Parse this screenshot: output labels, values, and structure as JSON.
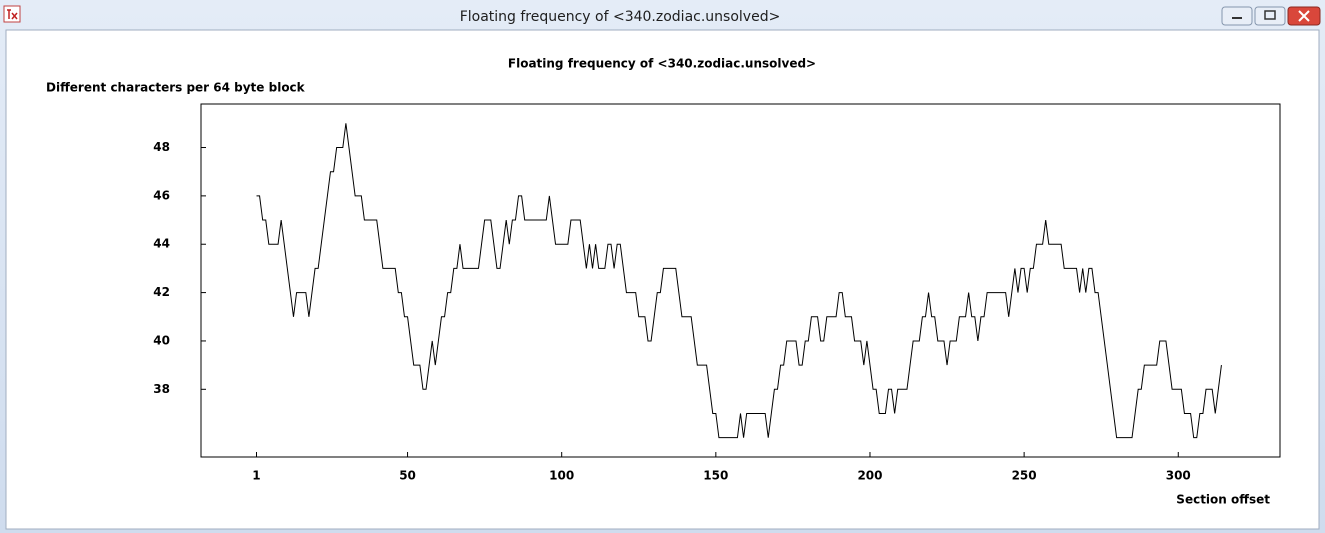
{
  "window": {
    "title": "Floating frequency of <340.zodiac.unsolved>"
  },
  "chart_data": {
    "type": "line",
    "title": "Floating frequency of <340.zodiac.unsolved>",
    "y_label": "Different characters per 64 byte block",
    "x_label": "Section offset",
    "color": "#000000",
    "x": [
      1,
      2,
      3,
      4,
      5,
      6,
      7,
      8,
      9,
      10,
      11,
      12,
      13,
      14,
      15,
      16,
      17,
      18,
      19,
      20,
      21,
      22,
      23,
      24,
      25,
      26,
      27,
      28,
      29,
      30,
      31,
      32,
      33,
      34,
      35,
      36,
      37,
      38,
      39,
      40,
      41,
      42,
      43,
      44,
      45,
      46,
      47,
      48,
      49,
      50,
      51,
      52,
      53,
      54,
      55,
      56,
      57,
      58,
      59,
      60,
      61,
      62,
      63,
      64,
      65,
      66,
      67,
      68,
      69,
      70,
      71,
      72,
      73,
      74,
      75,
      76,
      77,
      78,
      79,
      80,
      81,
      82,
      83,
      84,
      85,
      86,
      87,
      88,
      89,
      90,
      91,
      92,
      93,
      94,
      95,
      96,
      97,
      98,
      99,
      100,
      101,
      102,
      103,
      104,
      105,
      106,
      107,
      108,
      109,
      110,
      111,
      112,
      113,
      114,
      115,
      116,
      117,
      118,
      119,
      120,
      121,
      122,
      123,
      124,
      125,
      126,
      127,
      128,
      129,
      130,
      131,
      132,
      133,
      134,
      135,
      136,
      137,
      138,
      139,
      140,
      141,
      142,
      143,
      144,
      145,
      146,
      147,
      148,
      149,
      150,
      151,
      152,
      153,
      154,
      155,
      156,
      157,
      158,
      159,
      160,
      161,
      162,
      163,
      164,
      165,
      166,
      167,
      168,
      169,
      170,
      171,
      172,
      173,
      174,
      175,
      176,
      177,
      178,
      179,
      180,
      181,
      182,
      183,
      184,
      185,
      186,
      187,
      188,
      189,
      190,
      191,
      192,
      193,
      194,
      195,
      196,
      197,
      198,
      199,
      200,
      201,
      202,
      203,
      204,
      205,
      206,
      207,
      208,
      209,
      210,
      211,
      212,
      213,
      214,
      215,
      216,
      217,
      218,
      219,
      220,
      221,
      222,
      223,
      224,
      225,
      226,
      227,
      228,
      229,
      230,
      231,
      232,
      233,
      234,
      235,
      236,
      237,
      238,
      239,
      240,
      241,
      242,
      243,
      244,
      245,
      246,
      247,
      248,
      249,
      250,
      251,
      252,
      253,
      254,
      255,
      256,
      257,
      258,
      259,
      260,
      261,
      262,
      263,
      264,
      265,
      266,
      267,
      268,
      269,
      270,
      271,
      272,
      273,
      274,
      275,
      276,
      277,
      278,
      279,
      280,
      281,
      282,
      283,
      284,
      285,
      286,
      287,
      288,
      289,
      290,
      291,
      292,
      293,
      294,
      295,
      296,
      297,
      298,
      299,
      300,
      301,
      302,
      303,
      304,
      305,
      306,
      307,
      308,
      309,
      310,
      311,
      312,
      313,
      314
    ],
    "values": [
      46,
      46,
      45,
      45,
      44,
      44,
      44,
      44,
      45,
      44,
      43,
      42,
      41,
      42,
      42,
      42,
      42,
      41,
      42,
      43,
      43,
      44,
      45,
      46,
      47,
      47,
      48,
      48,
      48,
      49,
      48,
      47,
      46,
      46,
      46,
      45,
      45,
      45,
      45,
      45,
      44,
      43,
      43,
      43,
      43,
      43,
      42,
      42,
      41,
      41,
      40,
      39,
      39,
      39,
      38,
      38,
      39,
      40,
      39,
      40,
      41,
      41,
      42,
      42,
      43,
      43,
      44,
      43,
      43,
      43,
      43,
      43,
      43,
      44,
      45,
      45,
      45,
      44,
      43,
      43,
      44,
      45,
      44,
      45,
      45,
      46,
      46,
      45,
      45,
      45,
      45,
      45,
      45,
      45,
      45,
      46,
      45,
      44,
      44,
      44,
      44,
      44,
      45,
      45,
      45,
      45,
      44,
      43,
      44,
      43,
      44,
      43,
      43,
      43,
      44,
      44,
      43,
      44,
      44,
      43,
      42,
      42,
      42,
      42,
      41,
      41,
      41,
      40,
      40,
      41,
      42,
      42,
      43,
      43,
      43,
      43,
      43,
      42,
      41,
      41,
      41,
      41,
      40,
      39,
      39,
      39,
      39,
      38,
      37,
      37,
      36,
      36,
      36,
      36,
      36,
      36,
      36,
      37,
      36,
      37,
      37,
      37,
      37,
      37,
      37,
      37,
      36,
      37,
      38,
      38,
      39,
      39,
      40,
      40,
      40,
      40,
      39,
      39,
      40,
      40,
      41,
      41,
      41,
      40,
      40,
      41,
      41,
      41,
      41,
      42,
      42,
      41,
      41,
      41,
      40,
      40,
      40,
      39,
      40,
      39,
      38,
      38,
      37,
      37,
      37,
      38,
      38,
      37,
      38,
      38,
      38,
      38,
      39,
      40,
      40,
      40,
      41,
      41,
      42,
      41,
      41,
      40,
      40,
      40,
      39,
      40,
      40,
      40,
      41,
      41,
      41,
      42,
      41,
      41,
      40,
      41,
      41,
      42,
      42,
      42,
      42,
      42,
      42,
      42,
      41,
      42,
      43,
      42,
      43,
      43,
      42,
      43,
      43,
      44,
      44,
      44,
      45,
      44,
      44,
      44,
      44,
      44,
      43,
      43,
      43,
      43,
      43,
      42,
      43,
      42,
      43,
      43,
      42,
      42,
      41,
      40,
      39,
      38,
      37,
      36,
      36,
      36,
      36,
      36,
      36,
      37,
      38,
      38,
      39,
      39,
      39,
      39,
      39,
      40,
      40,
      40,
      39,
      38,
      38,
      38,
      38,
      37,
      37,
      37,
      36,
      36,
      37,
      37,
      38,
      38,
      38,
      37,
      38,
      39
    ],
    "xlim": [
      -17,
      333
    ],
    "ylim": [
      35.2,
      49.8
    ],
    "xticks": [
      1,
      50,
      100,
      150,
      200,
      250,
      300
    ],
    "yticks": [
      38,
      40,
      42,
      44,
      46,
      48
    ]
  }
}
